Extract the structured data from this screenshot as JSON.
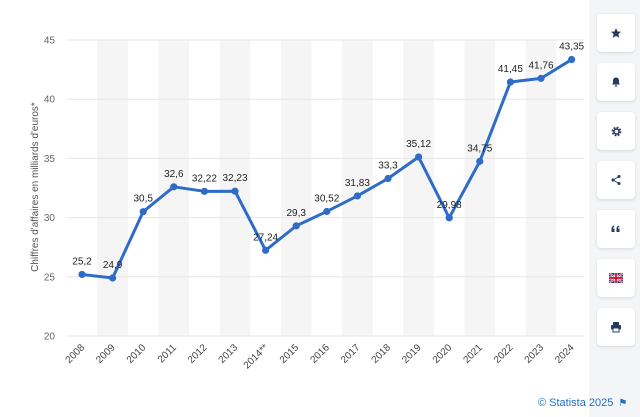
{
  "chart_data": {
    "type": "line",
    "ylabel": "Chiffres d'affaires en milliards d'euros*",
    "xlabel": "",
    "ylim": [
      20,
      45
    ],
    "yticks": [
      "20",
      "25",
      "30",
      "35",
      "40",
      "45"
    ],
    "grid": true,
    "categories": [
      "2008",
      "2009",
      "2010",
      "2011",
      "2012",
      "2013",
      "2014**",
      "2015",
      "2016",
      "2017",
      "2018",
      "2019",
      "2020",
      "2021",
      "2022",
      "2023",
      "2024"
    ],
    "values": [
      25.2,
      24.9,
      30.5,
      32.6,
      32.22,
      32.23,
      27.24,
      29.3,
      30.52,
      31.83,
      33.3,
      35.12,
      29.98,
      34.75,
      41.45,
      41.76,
      43.35
    ],
    "value_labels": [
      "25,2",
      "24,9",
      "30,5",
      "32,6",
      "32,22",
      "32,23",
      "27,24",
      "29,3",
      "30,52",
      "31,83",
      "33,3",
      "35,12",
      "29,98",
      "34,75",
      "41,45",
      "41,76",
      "43,35"
    ],
    "series_color": "#2f6cc8"
  },
  "toolbar": {
    "icons": [
      "star-icon",
      "bell-icon",
      "gear-icon",
      "share-icon",
      "quote-icon",
      "uk-flag-icon",
      "print-icon"
    ]
  },
  "footer": {
    "credit": "© Statista 2025"
  }
}
